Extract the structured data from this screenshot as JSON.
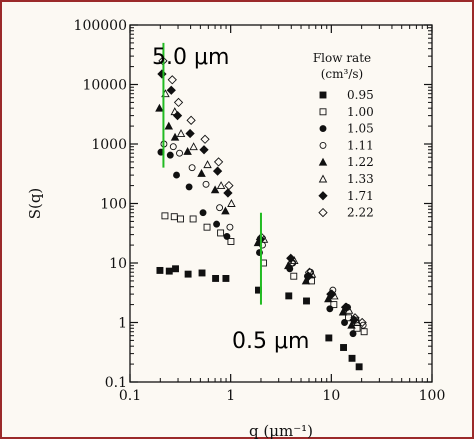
{
  "colors": {
    "background": "#fcf9f3",
    "border": "#9b2a2a",
    "marker_line": "#22bb22"
  },
  "chart_data": {
    "type": "scatter",
    "xlabel": "q (μm⁻¹)",
    "ylabel": "S(q)",
    "xscale": "log",
    "yscale": "log",
    "xlim": [
      0.1,
      100
    ],
    "ylim": [
      0.1,
      100000
    ],
    "x_ticks": [
      "0.1",
      "1",
      "10",
      "100"
    ],
    "y_ticks": [
      "0.1",
      "1",
      "10",
      "100",
      "1000",
      "10000",
      "100000"
    ],
    "grid": false,
    "legend_title": "Flow rate (cm³/s)",
    "legend_position": "top-right",
    "series": [
      {
        "name": "0.95",
        "marker": "filled-square",
        "points": [
          [
            0.21,
            7.5
          ],
          [
            0.26,
            7.3
          ],
          [
            0.3,
            8
          ],
          [
            0.4,
            6.5
          ],
          [
            0.55,
            6.8
          ],
          [
            0.75,
            5.5
          ],
          [
            0.95,
            5.5
          ],
          [
            2.0,
            3.5
          ],
          [
            4.0,
            2.8
          ],
          [
            6.0,
            2.3
          ],
          [
            10,
            0.55
          ],
          [
            14,
            0.38
          ],
          [
            17,
            0.25
          ],
          [
            20,
            0.18
          ]
        ]
      },
      {
        "name": "1.00",
        "marker": "open-square",
        "points": [
          [
            0.21,
            62
          ],
          [
            0.26,
            60
          ],
          [
            0.3,
            55
          ],
          [
            0.4,
            55
          ],
          [
            0.55,
            40
          ],
          [
            0.75,
            32
          ],
          [
            0.95,
            23
          ],
          [
            2.0,
            10
          ],
          [
            4.0,
            6
          ],
          [
            6.0,
            5
          ],
          [
            10,
            2
          ],
          [
            14,
            1.2
          ],
          [
            17,
            0.8
          ],
          [
            20,
            0.7
          ]
        ]
      },
      {
        "name": "1.05",
        "marker": "filled-circle",
        "points": [
          [
            0.21,
            730
          ],
          [
            0.26,
            650
          ],
          [
            0.3,
            300
          ],
          [
            0.4,
            190
          ],
          [
            0.55,
            70
          ],
          [
            0.75,
            45
          ],
          [
            0.95,
            28
          ],
          [
            2.0,
            15
          ],
          [
            4.0,
            8
          ],
          [
            6.0,
            6
          ],
          [
            10,
            1.7
          ],
          [
            14,
            1.0
          ],
          [
            17,
            0.65
          ]
        ]
      },
      {
        "name": "1.11",
        "marker": "open-circle",
        "points": [
          [
            0.21,
            1000
          ],
          [
            0.26,
            900
          ],
          [
            0.3,
            700
          ],
          [
            0.4,
            400
          ],
          [
            0.55,
            210
          ],
          [
            0.75,
            85
          ],
          [
            0.95,
            40
          ],
          [
            2.0,
            20
          ],
          [
            4.0,
            10
          ],
          [
            6.0,
            7
          ],
          [
            10,
            3.5
          ],
          [
            14,
            1.8
          ],
          [
            17,
            1.1
          ],
          [
            20,
            0.9
          ]
        ]
      },
      {
        "name": "1.22",
        "marker": "filled-triangle",
        "points": [
          [
            0.21,
            4000
          ],
          [
            0.26,
            2000
          ],
          [
            0.3,
            1300
          ],
          [
            0.4,
            750
          ],
          [
            0.55,
            320
          ],
          [
            0.75,
            170
          ],
          [
            0.95,
            75
          ],
          [
            2.0,
            22
          ],
          [
            4.0,
            9
          ],
          [
            6.0,
            5
          ],
          [
            10,
            2.5
          ],
          [
            14,
            1.5
          ],
          [
            17,
            0.9
          ]
        ]
      },
      {
        "name": "1.33",
        "marker": "open-triangle",
        "points": [
          [
            0.21,
            7000
          ],
          [
            0.26,
            3500
          ],
          [
            0.3,
            1500
          ],
          [
            0.4,
            900
          ],
          [
            0.55,
            450
          ],
          [
            0.75,
            200
          ],
          [
            0.95,
            100
          ],
          [
            2.0,
            25
          ],
          [
            4.0,
            11
          ],
          [
            6.0,
            6.5
          ],
          [
            10,
            2.8
          ],
          [
            14,
            1.6
          ],
          [
            17,
            1.0
          ]
        ]
      },
      {
        "name": "1.71",
        "marker": "filled-diamond",
        "points": [
          [
            0.21,
            15000
          ],
          [
            0.26,
            8000
          ],
          [
            0.3,
            3000
          ],
          [
            0.4,
            1500
          ],
          [
            0.55,
            800
          ],
          [
            0.75,
            350
          ],
          [
            0.95,
            150
          ],
          [
            2.0,
            25
          ],
          [
            4.0,
            12
          ],
          [
            6.0,
            6
          ],
          [
            10,
            3
          ],
          [
            14,
            1.8
          ],
          [
            17,
            1.1
          ]
        ]
      },
      {
        "name": "2.22",
        "marker": "open-diamond",
        "points": [
          [
            0.21,
            25000
          ],
          [
            0.26,
            12000
          ],
          [
            0.3,
            5000
          ],
          [
            0.4,
            2500
          ],
          [
            0.55,
            1200
          ],
          [
            0.75,
            500
          ],
          [
            0.95,
            200
          ],
          [
            2.0,
            27
          ],
          [
            4.0,
            10
          ],
          [
            6.0,
            7
          ],
          [
            10,
            3
          ],
          [
            14,
            1.8
          ],
          [
            17,
            1.2
          ],
          [
            20,
            1.0
          ]
        ]
      }
    ],
    "annotations": [
      {
        "text": "5.0 μm",
        "line_q": 0.21,
        "line_y_range": [
          400,
          50000
        ]
      },
      {
        "text": "0.5 μm",
        "line_q": 2.0,
        "line_y_range": [
          2,
          70
        ]
      }
    ]
  }
}
